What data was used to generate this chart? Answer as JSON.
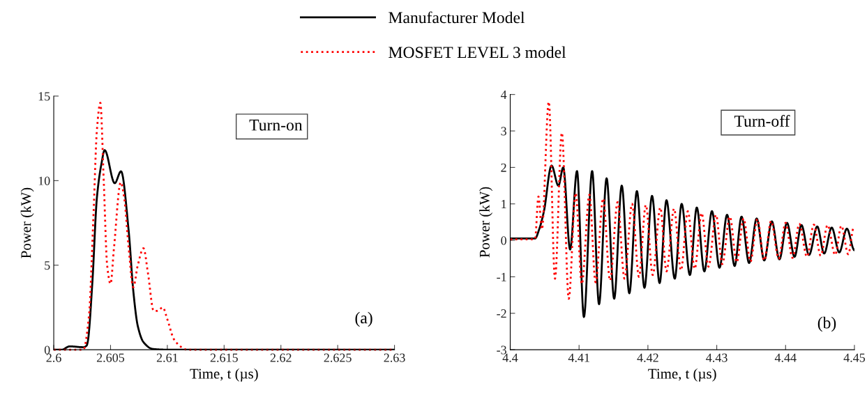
{
  "chart_data": [
    {
      "type": "line",
      "xlabel": "Time, t (µs)",
      "ylabel": "Power (kW)",
      "annotations": [
        "Turn-on",
        "(a)"
      ],
      "legend": "top",
      "grid": false,
      "xlim": [
        2.6,
        2.63
      ],
      "xticks": [
        2.6,
        2.605,
        2.61,
        2.615,
        2.62,
        2.625,
        2.63
      ],
      "ylim": [
        0,
        15
      ],
      "yticks": [
        0,
        5,
        10,
        15
      ],
      "series": [
        {
          "name": "Manufacturer Model",
          "color": "#000000",
          "line_style": "solid",
          "x": [
            2.6,
            2.6007,
            2.6014,
            2.6026,
            2.6029,
            2.603,
            2.6034,
            2.6038,
            2.6042,
            2.60448,
            2.60537,
            2.60592,
            2.6066,
            2.607,
            2.6074,
            2.6079,
            2.6087,
            2.6095,
            2.61,
            2.63
          ],
          "values": [
            0,
            0,
            0.2,
            0.15,
            0.25,
            0.5,
            4,
            9,
            11,
            11.8,
            9.85,
            10.55,
            7,
            3.5,
            1.4,
            0.45,
            0.05,
            0.01,
            0,
            0
          ]
        },
        {
          "name": "MOSFET LEVEL 3 model",
          "color": "#ff0000",
          "line_style": "dotted",
          "x": [
            2.6,
            2.6026,
            2.6031,
            2.6035,
            2.6038,
            2.6041,
            2.6044,
            2.6047,
            2.605,
            2.6053,
            2.6059,
            2.6062,
            2.6066,
            2.607,
            2.6074,
            2.6079,
            2.6083,
            2.6088,
            2.6091,
            2.6096,
            2.61,
            2.6106,
            2.6115,
            2.6117,
            2.63
          ],
          "values": [
            0,
            0,
            2,
            8,
            13,
            14.6,
            10,
            5,
            3.9,
            6,
            9.9,
            9,
            6,
            3.7,
            5,
            6,
            4.5,
            2.3,
            2.3,
            2.5,
            1.8,
            0.6,
            0.05,
            0,
            0
          ]
        }
      ]
    },
    {
      "type": "line",
      "xlabel": "Time, t (µs)",
      "ylabel": "Power (kW)",
      "annotations": [
        "Turn-off",
        "(b)"
      ],
      "grid": false,
      "xlim": [
        4.4,
        4.45
      ],
      "xticks": [
        4.4,
        4.41,
        4.42,
        4.43,
        4.44,
        4.45
      ],
      "ylim": [
        -3,
        4
      ],
      "yticks": [
        -3,
        -2,
        -1,
        0,
        1,
        2,
        3,
        4
      ],
      "series": [
        {
          "color": "#000000",
          "line_style": "solid",
          "x": [
            4.4,
            4.4036,
            4.4042,
            4.4049,
            4.406,
            4.407,
            4.4077,
            4.4087,
            4.4097,
            4.4107,
            4.4119,
            4.4129,
            4.414,
            4.4151,
            4.4162,
            4.4173,
            4.4184,
            4.4195,
            4.4206,
            4.4217,
            4.4227,
            4.4239,
            4.4249,
            4.4261,
            4.4271,
            4.4282,
            4.4293,
            4.4304,
            4.4315,
            4.4326,
            4.4336,
            4.4347,
            4.4358,
            4.4369,
            4.438,
            4.4391,
            4.4402,
            4.4413,
            4.4423,
            4.4434,
            4.4446,
            4.4456,
            4.4467,
            4.4478,
            4.4489,
            4.45
          ],
          "values": [
            0.05,
            0.05,
            0.3,
            0.8,
            2.05,
            1.5,
            2.0,
            -0.25,
            1.9,
            -2.1,
            1.9,
            -1.75,
            1.7,
            -1.6,
            1.5,
            -1.45,
            1.35,
            -1.3,
            1.22,
            -1.17,
            1.1,
            -1.05,
            1.0,
            -0.95,
            0.9,
            -0.85,
            0.8,
            -0.75,
            0.7,
            -0.7,
            0.65,
            -0.62,
            0.6,
            -0.55,
            0.52,
            -0.52,
            0.48,
            -0.45,
            0.42,
            -0.4,
            0.38,
            -0.36,
            0.35,
            -0.33,
            0.32,
            -0.27
          ]
        },
        {
          "color": "#ff0000",
          "line_style": "dotted",
          "x": [
            4.4,
            4.4036,
            4.4041,
            4.4046,
            4.4056,
            4.4065,
            4.4075,
            4.4085,
            4.4095,
            4.4104,
            4.4115,
            4.4124,
            4.4135,
            4.4145,
            4.4156,
            4.4166,
            4.4177,
            4.4187,
            4.4197,
            4.4207,
            4.4218,
            4.4227,
            4.4238,
            4.4248,
            4.4258,
            4.4268,
            4.4278,
            4.4288,
            4.4299,
            4.4308,
            4.4319,
            4.4329,
            4.4339,
            4.4349,
            4.4359,
            4.4369,
            4.4379,
            4.439,
            4.44,
            4.441,
            4.442,
            4.4431,
            4.4441,
            4.4451,
            4.4461,
            4.4472,
            4.4481,
            4.4491,
            4.4499
          ],
          "values": [
            0.03,
            0.03,
            1.2,
            0.3,
            3.8,
            -1.05,
            2.95,
            -1.6,
            1.3,
            -1.2,
            1.25,
            -1.15,
            1.15,
            -1.1,
            1.05,
            -1.05,
            1.0,
            -1.0,
            0.97,
            -0.95,
            0.9,
            -0.85,
            0.87,
            -0.82,
            0.8,
            -0.78,
            0.75,
            -0.72,
            0.7,
            -0.65,
            0.65,
            -0.6,
            0.6,
            -0.58,
            0.58,
            -0.55,
            0.53,
            -0.5,
            0.48,
            -0.48,
            0.45,
            -0.45,
            0.43,
            -0.42,
            0.42,
            -0.4,
            0.4,
            -0.38,
            0.35
          ]
        }
      ]
    }
  ]
}
